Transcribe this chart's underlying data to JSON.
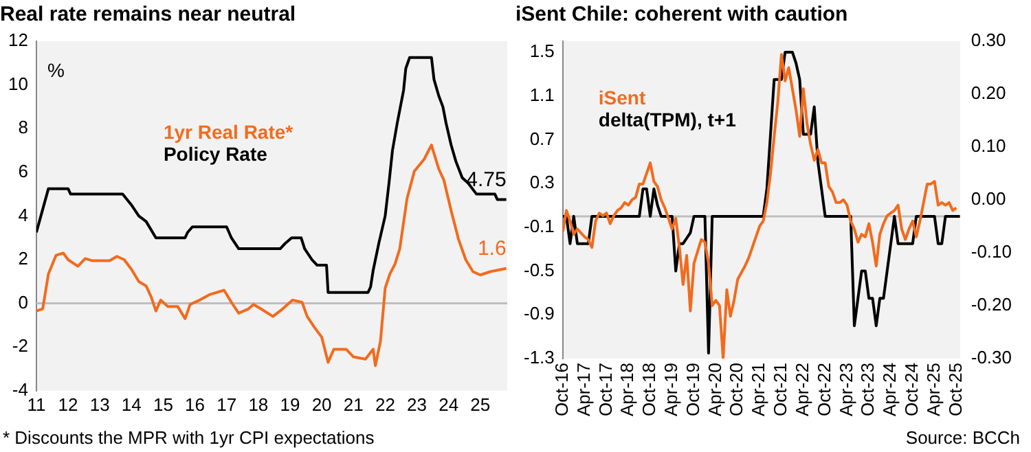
{
  "chart_data": [
    {
      "type": "line",
      "title": "Real rate remains near neutral",
      "ylabel": "%",
      "legend": "top left",
      "grid": false,
      "xlim": [
        2011,
        2025.85
      ],
      "xticks": [
        {
          "value": 2011,
          "label": "11"
        },
        {
          "value": 2012,
          "label": "12"
        },
        {
          "value": 2013,
          "label": "13"
        },
        {
          "value": 2014,
          "label": "14"
        },
        {
          "value": 2015,
          "label": "15"
        },
        {
          "value": 2016,
          "label": "16"
        },
        {
          "value": 2017,
          "label": "17"
        },
        {
          "value": 2018,
          "label": "18"
        },
        {
          "value": 2019,
          "label": "19"
        },
        {
          "value": 2020,
          "label": "20"
        },
        {
          "value": 2021,
          "label": "21"
        },
        {
          "value": 2022,
          "label": "22"
        },
        {
          "value": 2023,
          "label": "23"
        },
        {
          "value": 2024,
          "label": "24"
        },
        {
          "value": 2025,
          "label": "25"
        }
      ],
      "ylim": [
        -4,
        12
      ],
      "yticks": [
        -4,
        -2,
        0,
        2,
        4,
        6,
        8,
        10,
        12
      ],
      "ref_lines": [
        {
          "axis": "y",
          "value": 0,
          "color": "#bfbfbf"
        }
      ],
      "series": [
        {
          "name": "1yr Real Rate*",
          "color": "#f26b1d",
          "x": [
            2011.0,
            2011.2,
            2011.38,
            2011.62,
            2011.85,
            2012.0,
            2012.31,
            2012.54,
            2012.77,
            2013.31,
            2013.54,
            2013.77,
            2014.0,
            2014.23,
            2014.46,
            2014.62,
            2014.77,
            2014.92,
            2015.15,
            2015.46,
            2015.69,
            2015.85,
            2016.15,
            2016.46,
            2016.92,
            2017.15,
            2017.38,
            2017.69,
            2017.85,
            2018.08,
            2018.46,
            2018.77,
            2019.08,
            2019.38,
            2019.54,
            2019.77,
            2020.0,
            2020.2,
            2020.38,
            2020.77,
            2021.0,
            2021.38,
            2021.62,
            2021.69,
            2021.85,
            2022.0,
            2022.15,
            2022.31,
            2022.46,
            2022.69,
            2022.92,
            2023.23,
            2023.46,
            2023.69,
            2023.85,
            2024.08,
            2024.31,
            2024.54,
            2024.77,
            2025.0,
            2025.31,
            2025.82
          ],
          "values": [
            -0.35,
            -0.25,
            1.35,
            2.2,
            2.3,
            2.0,
            1.7,
            2.05,
            1.95,
            1.95,
            2.15,
            2.0,
            1.55,
            1.0,
            0.8,
            0.3,
            -0.35,
            0.15,
            -0.15,
            -0.15,
            -0.7,
            -0.05,
            0.15,
            0.4,
            0.6,
            0.05,
            -0.45,
            -0.25,
            -0.05,
            -0.25,
            -0.6,
            -0.25,
            0.15,
            0.05,
            -0.6,
            -1.1,
            -1.55,
            -2.7,
            -2.1,
            -2.1,
            -2.45,
            -2.55,
            -2.1,
            -2.85,
            -1.75,
            0.7,
            1.35,
            1.8,
            2.5,
            4.8,
            6.05,
            6.6,
            7.25,
            6.15,
            5.65,
            4.25,
            2.95,
            2.0,
            1.45,
            1.3,
            1.45,
            1.6
          ],
          "value_labels": [
            null,
            null,
            null,
            null,
            null,
            null,
            null,
            null,
            null,
            null,
            null,
            null,
            null,
            null,
            null,
            null,
            null,
            null,
            null,
            null,
            null,
            null,
            null,
            null,
            null,
            null,
            null,
            null,
            null,
            null,
            null,
            null,
            null,
            null,
            null,
            null,
            null,
            null,
            null,
            null,
            null,
            null,
            null,
            null,
            null,
            null,
            null,
            null,
            null,
            null,
            null,
            null,
            null,
            null,
            null,
            null,
            null,
            null,
            null,
            null,
            null,
            "1.6"
          ]
        },
        {
          "name": "Policy Rate",
          "color": "#000000",
          "x": [
            2011.0,
            2011.38,
            2012.0,
            2012.08,
            2013.72,
            2014.0,
            2014.23,
            2014.46,
            2014.77,
            2015.69,
            2015.77,
            2015.92,
            2017.0,
            2017.15,
            2017.38,
            2018.69,
            2018.85,
            2019.05,
            2019.35,
            2019.46,
            2019.69,
            2019.85,
            2020.15,
            2020.2,
            2021.46,
            2021.54,
            2021.62,
            2021.8,
            2022.0,
            2022.12,
            2022.23,
            2022.38,
            2022.58,
            2022.65,
            2022.77,
            2023.46,
            2023.54,
            2023.69,
            2023.82,
            2023.92,
            2024.08,
            2024.23,
            2024.43,
            2024.62,
            2024.88,
            2025.46,
            2025.54,
            2025.82
          ],
          "values": [
            3.25,
            5.25,
            5.25,
            5.0,
            5.0,
            4.5,
            4.0,
            3.75,
            3.0,
            3.0,
            3.25,
            3.5,
            3.5,
            3.0,
            2.5,
            2.5,
            2.75,
            3.0,
            3.0,
            2.5,
            2.0,
            1.75,
            1.75,
            0.5,
            0.5,
            0.75,
            1.5,
            2.75,
            4.0,
            5.5,
            7.0,
            8.25,
            9.75,
            10.75,
            11.25,
            11.25,
            10.25,
            9.5,
            9.0,
            8.25,
            7.25,
            6.5,
            5.75,
            5.5,
            5.0,
            5.0,
            4.75,
            4.75
          ],
          "value_labels": [
            null,
            null,
            null,
            null,
            null,
            null,
            null,
            null,
            null,
            null,
            null,
            null,
            null,
            null,
            null,
            null,
            null,
            null,
            null,
            null,
            null,
            null,
            null,
            null,
            null,
            null,
            null,
            null,
            null,
            null,
            null,
            null,
            null,
            null,
            null,
            null,
            null,
            null,
            null,
            null,
            null,
            null,
            null,
            null,
            null,
            null,
            null,
            "4.75"
          ]
        }
      ],
      "annotations": [
        "* Discounts the MPR with 1yr CPI expectations"
      ]
    },
    {
      "type": "line",
      "title": "iSent Chile: coherent with caution",
      "legend": "top left",
      "grid": false,
      "xlim": [
        "2016-10",
        "2025-11"
      ],
      "xticks": [
        {
          "value": "2016-10",
          "label": "Oct-16"
        },
        {
          "value": "2017-04",
          "label": "Apr-17"
        },
        {
          "value": "2017-10",
          "label": "Oct-17"
        },
        {
          "value": "2018-04",
          "label": "Apr-18"
        },
        {
          "value": "2018-10",
          "label": "Oct-18"
        },
        {
          "value": "2019-04",
          "label": "Apr-19"
        },
        {
          "value": "2019-10",
          "label": "Oct-19"
        },
        {
          "value": "2020-04",
          "label": "Apr-20"
        },
        {
          "value": "2020-10",
          "label": "Oct-20"
        },
        {
          "value": "2021-04",
          "label": "Apr-21"
        },
        {
          "value": "2021-10",
          "label": "Oct-21"
        },
        {
          "value": "2022-04",
          "label": "Apr-22"
        },
        {
          "value": "2022-10",
          "label": "Oct-22"
        },
        {
          "value": "2023-04",
          "label": "Apr-23"
        },
        {
          "value": "2023-10",
          "label": "Oct-23"
        },
        {
          "value": "2024-04",
          "label": "Apr-24"
        },
        {
          "value": "2024-10",
          "label": "Oct-24"
        },
        {
          "value": "2025-04",
          "label": "Apr-25"
        },
        {
          "value": "2025-10",
          "label": "Oct-25"
        }
      ],
      "ylim": [
        -1.3,
        1.6
      ],
      "yticks": [
        -1.3,
        -0.9,
        -0.5,
        -0.1,
        0.3,
        0.7,
        1.1,
        1.5
      ],
      "y2lim": [
        -0.3,
        0.3
      ],
      "y2ticks": [
        {
          "value": -0.3,
          "label": "-0.30"
        },
        {
          "value": -0.2,
          "label": "-0.20"
        },
        {
          "value": -0.1,
          "label": "-0.10"
        },
        {
          "value": 0,
          "label": "0.00"
        },
        {
          "value": 0.1,
          "label": "0.10"
        },
        {
          "value": 0.2,
          "label": "0.20"
        },
        {
          "value": 0.3,
          "label": "0.30"
        }
      ],
      "ref_lines": [
        {
          "axis": "y",
          "value": 0,
          "color": "#bfbfbf"
        }
      ],
      "series": [
        {
          "name": "iSent",
          "color": "#f26b1d",
          "axis": "y2",
          "x": [
            "2016-10",
            "2016-11",
            "2016-12",
            "2017-01",
            "2017-02",
            "2017-04",
            "2017-05",
            "2017-06",
            "2017-07",
            "2017-08",
            "2017-09",
            "2017-10",
            "2017-11",
            "2017-12",
            "2018-01",
            "2018-02",
            "2018-03",
            "2018-04",
            "2018-05",
            "2018-06",
            "2018-07",
            "2018-08",
            "2018-09",
            "2018-10",
            "2018-11",
            "2018-12",
            "2019-01",
            "2019-02",
            "2019-03",
            "2019-04",
            "2019-05",
            "2019-06",
            "2019-07",
            "2019-08",
            "2019-09",
            "2019-10",
            "2019-12",
            "2020-01",
            "2020-02",
            "2020-03",
            "2020-04",
            "2020-05",
            "2020-06",
            "2020-07",
            "2020-08",
            "2020-09",
            "2020-10",
            "2020-12",
            "2021-01",
            "2021-02",
            "2021-03",
            "2021-04",
            "2021-05",
            "2021-06",
            "2021-07",
            "2021-08",
            "2021-09",
            "2021-10",
            "2021-11",
            "2021-12",
            "2022-01",
            "2022-02",
            "2022-03",
            "2022-04",
            "2022-05",
            "2022-06",
            "2022-07",
            "2022-08",
            "2022-09",
            "2022-10",
            "2022-11",
            "2022-12",
            "2023-01",
            "2023-02",
            "2023-03",
            "2023-04",
            "2023-05",
            "2023-06",
            "2023-07",
            "2023-08",
            "2023-09",
            "2023-10",
            "2023-11",
            "2023-12",
            "2024-01",
            "2024-02",
            "2024-03",
            "2024-04",
            "2024-05",
            "2024-06",
            "2024-07",
            "2024-08",
            "2024-09",
            "2024-10",
            "2024-11",
            "2024-12",
            "2025-01",
            "2025-02",
            "2025-03",
            "2025-04",
            "2025-05",
            "2025-06",
            "2025-07",
            "2025-08",
            "2025-09",
            "2025-10"
          ],
          "values": [
            -0.06,
            -0.02,
            -0.04,
            -0.065,
            -0.055,
            -0.07,
            -0.075,
            -0.09,
            -0.04,
            -0.025,
            -0.03,
            -0.025,
            -0.045,
            -0.03,
            -0.02,
            -0.015,
            -0.005,
            -0.01,
            0.0,
            0.005,
            0.03,
            0.03,
            0.05,
            0.07,
            0.035,
            0.025,
            0.0,
            -0.015,
            -0.035,
            -0.055,
            -0.035,
            -0.09,
            -0.16,
            -0.105,
            -0.21,
            -0.12,
            -0.075,
            -0.08,
            -0.12,
            -0.2,
            -0.19,
            -0.2,
            -0.3,
            -0.17,
            -0.22,
            -0.19,
            -0.15,
            -0.125,
            -0.11,
            -0.09,
            -0.07,
            -0.05,
            -0.04,
            -0.005,
            0.05,
            0.12,
            0.185,
            0.275,
            0.225,
            0.25,
            0.21,
            0.17,
            0.12,
            0.21,
            0.145,
            0.105,
            0.075,
            0.095,
            0.07,
            0.07,
            0.025,
            0.015,
            -0.005,
            -0.005,
            0.0,
            -0.01,
            -0.04,
            -0.055,
            -0.08,
            -0.065,
            -0.07,
            -0.045,
            -0.08,
            -0.125,
            -0.065,
            -0.045,
            -0.03,
            -0.025,
            -0.02,
            -0.01,
            -0.055,
            -0.075,
            -0.055,
            -0.04,
            -0.07,
            -0.04,
            -0.005,
            0.03,
            0.03,
            0.035,
            -0.01,
            -0.005,
            -0.01,
            -0.005,
            -0.02,
            -0.015
          ]
        },
        {
          "name": "delta(TPM), t+1",
          "color": "#000000",
          "x": [
            "2016-10",
            "2016-11",
            "2016-12",
            "2017-01",
            "2017-02",
            "2017-05",
            "2017-06",
            "2018-07",
            "2018-08",
            "2018-09",
            "2018-10",
            "2018-11",
            "2018-12",
            "2019-01",
            "2019-04",
            "2019-05",
            "2019-06",
            "2019-07",
            "2019-08",
            "2019-09",
            "2019-10",
            "2020-01",
            "2020-02",
            "2020-03",
            "2021-05",
            "2021-06",
            "2021-07",
            "2021-08",
            "2021-10",
            "2021-11",
            "2022-01",
            "2022-02",
            "2022-03",
            "2022-04",
            "2022-06",
            "2022-07",
            "2022-08",
            "2022-09",
            "2022-10",
            "2023-05",
            "2023-06",
            "2023-07",
            "2023-08",
            "2023-09",
            "2023-10",
            "2023-11",
            "2023-12",
            "2024-01",
            "2024-02",
            "2024-03",
            "2024-04",
            "2024-05",
            "2024-06",
            "2024-10",
            "2024-11",
            "2025-04",
            "2025-05",
            "2025-06",
            "2025-07",
            "2025-11"
          ],
          "values": [
            0,
            0,
            -0.25,
            0,
            -0.25,
            -0.25,
            0,
            0,
            0.25,
            0.25,
            0,
            0.25,
            0.1,
            0,
            0,
            -0.5,
            -0.25,
            -0.25,
            -0.2,
            -0.15,
            0,
            0,
            -1.25,
            0,
            0,
            0.25,
            0.75,
            1.25,
            1.25,
            1.5,
            1.5,
            1.4,
            1.25,
            0.75,
            0.75,
            1.0,
            0.5,
            0.25,
            0,
            0,
            -1.0,
            -0.75,
            -0.5,
            -0.5,
            -0.75,
            -0.75,
            -1.0,
            -0.75,
            -0.75,
            -0.5,
            -0.25,
            0,
            -0.25,
            -0.25,
            0,
            0,
            -0.25,
            -0.25,
            0,
            0
          ]
        }
      ],
      "annotations": [
        "Source: BCCh"
      ]
    }
  ]
}
